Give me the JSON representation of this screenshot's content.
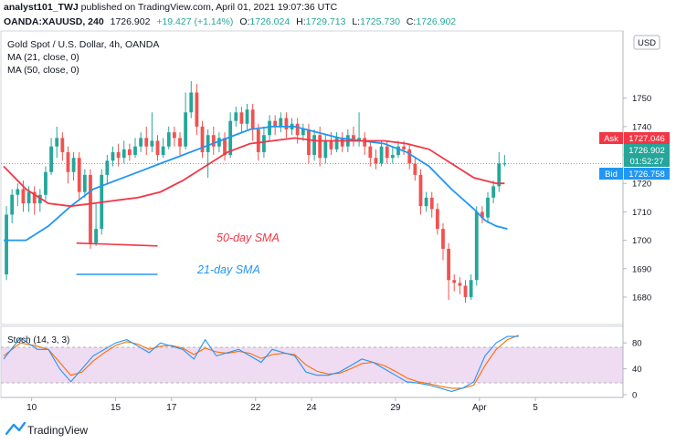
{
  "header": {
    "author": "analyst101_TWJ",
    "published": " published on TradingView.com, April 01, 2021 19:07:36 UTC",
    "symbol": "OANDA:XAUUSD, 240",
    "price": "1726.902",
    "change": "+19.427 (+1.14%)",
    "o_label": "O:",
    "o": "1726.024",
    "h_label": "H:",
    "h": "1729.713",
    "l_label": "L:",
    "l": "1725.730",
    "c_label": "C:",
    "c": "1726.902"
  },
  "legend": {
    "title": "Gold Spot / U.S. Dollar, 4h, OANDA",
    "ma21": "MA (21, close, 0)",
    "ma50": "MA (50, close, 0)"
  },
  "annotations": {
    "sma50": "50-day SMA",
    "sma21": "21-day SMA"
  },
  "price_tags": {
    "currency": "USD",
    "ask_label": "Ask",
    "ask": "1727.046",
    "last": "1726.902",
    "countdown": "01:52:27",
    "bid_label": "Bid",
    "bid": "1726.758"
  },
  "stoch_label": "Stoch (14, 3, 3)",
  "brand": "TradingView",
  "colors": {
    "bull": "#26a69a",
    "bear": "#ef5350",
    "ma21": "#2196f3",
    "ma50": "#f23645",
    "stoch_k": "#2196f3",
    "stoch_d": "#ff6d00",
    "stoch_band": "#e1bee7"
  },
  "chart_data": [
    {
      "type": "candlestick",
      "title": "Gold Spot / U.S. Dollar, 4h, OANDA",
      "x_ticks": [
        "10",
        "15",
        "17",
        "22",
        "24",
        "29",
        "Apr",
        "5"
      ],
      "y_ticks": [
        1680,
        1690,
        1700,
        1710,
        1720,
        1730,
        1740,
        1750
      ],
      "ylim": [
        1671,
        1773
      ],
      "x_range": [
        0,
        110
      ],
      "tick_positions": [
        5,
        20,
        30,
        45,
        55,
        70,
        85,
        95
      ],
      "candles": [
        [
          1688,
          1709,
          1686,
          1712
        ],
        [
          1709,
          1716,
          1706,
          1718
        ],
        [
          1716,
          1718,
          1712,
          1720
        ],
        [
          1718,
          1713,
          1710,
          1721
        ],
        [
          1713,
          1717,
          1710,
          1719
        ],
        [
          1717,
          1713,
          1709,
          1719
        ],
        [
          1713,
          1716,
          1710,
          1718
        ],
        [
          1716,
          1724,
          1714,
          1726
        ],
        [
          1724,
          1733,
          1723,
          1736
        ],
        [
          1733,
          1736,
          1729,
          1740
        ],
        [
          1736,
          1731,
          1728,
          1738
        ],
        [
          1731,
          1724,
          1720,
          1733
        ],
        [
          1724,
          1729,
          1721,
          1731
        ],
        [
          1729,
          1717,
          1714,
          1731
        ],
        [
          1717,
          1723,
          1715,
          1725
        ],
        [
          1723,
          1699,
          1697,
          1725
        ],
        [
          1699,
          1704,
          1698,
          1713
        ],
        [
          1704,
          1723,
          1702,
          1725
        ],
        [
          1723,
          1728,
          1720,
          1730
        ],
        [
          1728,
          1731,
          1726,
          1733
        ],
        [
          1731,
          1729,
          1726,
          1734
        ],
        [
          1729,
          1732,
          1727,
          1735
        ],
        [
          1732,
          1730,
          1728,
          1734
        ],
        [
          1730,
          1733,
          1729,
          1736
        ],
        [
          1733,
          1736,
          1731,
          1738
        ],
        [
          1736,
          1733,
          1730,
          1740
        ],
        [
          1733,
          1735,
          1731,
          1745
        ],
        [
          1735,
          1730,
          1728,
          1737
        ],
        [
          1730,
          1733,
          1729,
          1736
        ],
        [
          1733,
          1738,
          1732,
          1740
        ],
        [
          1738,
          1736,
          1733,
          1740
        ],
        [
          1736,
          1733,
          1730,
          1738
        ],
        [
          1733,
          1745,
          1732,
          1752
        ],
        [
          1745,
          1752,
          1743,
          1756
        ],
        [
          1752,
          1740,
          1737,
          1755
        ],
        [
          1740,
          1731,
          1729,
          1742
        ],
        [
          1731,
          1737,
          1722,
          1739
        ],
        [
          1737,
          1733,
          1730,
          1740
        ],
        [
          1733,
          1736,
          1731,
          1738
        ],
        [
          1736,
          1730,
          1728,
          1738
        ],
        [
          1730,
          1742,
          1729,
          1745
        ],
        [
          1742,
          1745,
          1740,
          1747
        ],
        [
          1745,
          1741,
          1738,
          1747
        ],
        [
          1741,
          1746,
          1739,
          1748
        ],
        [
          1746,
          1739,
          1735,
          1748
        ],
        [
          1739,
          1731,
          1728,
          1741
        ],
        [
          1731,
          1737,
          1729,
          1740
        ],
        [
          1737,
          1742,
          1735,
          1744
        ],
        [
          1742,
          1740,
          1737,
          1744
        ],
        [
          1740,
          1743,
          1738,
          1745
        ],
        [
          1743,
          1739,
          1736,
          1745
        ],
        [
          1739,
          1741,
          1737,
          1743
        ],
        [
          1741,
          1737,
          1734,
          1743
        ],
        [
          1737,
          1739,
          1735,
          1741
        ],
        [
          1739,
          1730,
          1727,
          1741
        ],
        [
          1730,
          1737,
          1728,
          1739
        ],
        [
          1737,
          1729,
          1726,
          1740
        ],
        [
          1729,
          1735,
          1727,
          1737
        ],
        [
          1735,
          1732,
          1730,
          1738
        ],
        [
          1732,
          1736,
          1731,
          1738
        ],
        [
          1736,
          1733,
          1731,
          1738
        ],
        [
          1733,
          1737,
          1731,
          1739
        ],
        [
          1737,
          1735,
          1733,
          1740
        ],
        [
          1735,
          1736,
          1733,
          1745
        ],
        [
          1736,
          1733,
          1730,
          1738
        ],
        [
          1733,
          1729,
          1726,
          1735
        ],
        [
          1729,
          1727,
          1725,
          1732
        ],
        [
          1727,
          1733,
          1726,
          1735
        ],
        [
          1733,
          1729,
          1727,
          1735
        ],
        [
          1729,
          1730,
          1727,
          1733
        ],
        [
          1730,
          1733,
          1729,
          1735
        ],
        [
          1733,
          1732,
          1730,
          1735
        ],
        [
          1732,
          1727,
          1725,
          1734
        ],
        [
          1727,
          1723,
          1721,
          1729
        ],
        [
          1723,
          1712,
          1709,
          1725
        ],
        [
          1712,
          1715,
          1710,
          1717
        ],
        [
          1715,
          1711,
          1708,
          1717
        ],
        [
          1711,
          1704,
          1702,
          1713
        ],
        [
          1704,
          1697,
          1693,
          1706
        ],
        [
          1697,
          1686,
          1679,
          1699
        ],
        [
          1686,
          1685,
          1682,
          1688
        ],
        [
          1685,
          1684,
          1681,
          1687
        ],
        [
          1684,
          1680,
          1678,
          1686
        ],
        [
          1680,
          1686,
          1679,
          1688
        ],
        [
          1686,
          1710,
          1684,
          1712
        ],
        [
          1710,
          1708,
          1706,
          1712
        ],
        [
          1708,
          1715,
          1706,
          1717
        ],
        [
          1715,
          1719,
          1713,
          1721
        ],
        [
          1719,
          1727,
          1717,
          1731
        ],
        [
          1727,
          1727,
          1726,
          1730
        ]
      ],
      "ma21": [
        [
          0,
          1700
        ],
        [
          4,
          1700
        ],
        [
          8,
          1705
        ],
        [
          12,
          1712
        ],
        [
          16,
          1718
        ],
        [
          20,
          1721
        ],
        [
          24,
          1724
        ],
        [
          28,
          1727
        ],
        [
          32,
          1730
        ],
        [
          36,
          1733
        ],
        [
          40,
          1736
        ],
        [
          44,
          1739
        ],
        [
          48,
          1740
        ],
        [
          52,
          1740
        ],
        [
          56,
          1738
        ],
        [
          60,
          1736
        ],
        [
          64,
          1735
        ],
        [
          68,
          1734
        ],
        [
          72,
          1731
        ],
        [
          76,
          1726
        ],
        [
          80,
          1718
        ],
        [
          84,
          1711
        ],
        [
          86,
          1707
        ],
        [
          88,
          1705
        ],
        [
          90,
          1704
        ]
      ],
      "ma50": [
        [
          0,
          1726
        ],
        [
          4,
          1718
        ],
        [
          8,
          1713
        ],
        [
          12,
          1712
        ],
        [
          16,
          1713
        ],
        [
          20,
          1714
        ],
        [
          24,
          1715
        ],
        [
          28,
          1717
        ],
        [
          32,
          1721
        ],
        [
          36,
          1726
        ],
        [
          40,
          1731
        ],
        [
          44,
          1734
        ],
        [
          48,
          1735
        ],
        [
          52,
          1736
        ],
        [
          56,
          1735
        ],
        [
          60,
          1735
        ],
        [
          64,
          1735
        ],
        [
          68,
          1735
        ],
        [
          72,
          1734
        ],
        [
          76,
          1732
        ],
        [
          80,
          1727
        ],
        [
          84,
          1722
        ],
        [
          88,
          1720
        ],
        [
          89.5,
          1720
        ]
      ],
      "annotation_lines": [
        {
          "name": "sma50-marker",
          "color": "#f23645",
          "y1": 1699,
          "y2": 1698,
          "x1": 13,
          "x2": 27.5
        },
        {
          "name": "sma21-marker",
          "color": "#2196f3",
          "y1": 1688,
          "y2": 1688,
          "x1": 13,
          "x2": 27.5
        }
      ]
    },
    {
      "type": "line",
      "title": "Stoch (14, 3, 3)",
      "ylim": [
        0,
        100
      ],
      "y_ticks": [
        0,
        40,
        80
      ],
      "bands": [
        20,
        80
      ],
      "series": [
        {
          "name": "%K",
          "values": [
            [
              0,
              55
            ],
            [
              3,
              88
            ],
            [
              6,
              70
            ],
            [
              8,
              70
            ],
            [
              10,
              40
            ],
            [
              12,
              20
            ],
            [
              14,
              40
            ],
            [
              16,
              60
            ],
            [
              18,
              70
            ],
            [
              20,
              80
            ],
            [
              22,
              85
            ],
            [
              24,
              75
            ],
            [
              26,
              65
            ],
            [
              28,
              80
            ],
            [
              30,
              75
            ],
            [
              32,
              70
            ],
            [
              34,
              55
            ],
            [
              36,
              85
            ],
            [
              38,
              60
            ],
            [
              40,
              65
            ],
            [
              42,
              70
            ],
            [
              44,
              60
            ],
            [
              46,
              50
            ],
            [
              48,
              70
            ],
            [
              50,
              65
            ],
            [
              52,
              60
            ],
            [
              54,
              35
            ],
            [
              56,
              30
            ],
            [
              58,
              30
            ],
            [
              60,
              35
            ],
            [
              62,
              45
            ],
            [
              64,
              55
            ],
            [
              66,
              50
            ],
            [
              68,
              40
            ],
            [
              70,
              30
            ],
            [
              72,
              20
            ],
            [
              74,
              18
            ],
            [
              76,
              15
            ],
            [
              78,
              10
            ],
            [
              80,
              5
            ],
            [
              82,
              10
            ],
            [
              84,
              20
            ],
            [
              86,
              60
            ],
            [
              88,
              80
            ],
            [
              90,
              90
            ],
            [
              92,
              90
            ]
          ]
        },
        {
          "name": "%D",
          "values": [
            [
              0,
              60
            ],
            [
              3,
              80
            ],
            [
              6,
              75
            ],
            [
              8,
              70
            ],
            [
              10,
              50
            ],
            [
              12,
              30
            ],
            [
              14,
              35
            ],
            [
              16,
              52
            ],
            [
              18,
              65
            ],
            [
              20,
              76
            ],
            [
              22,
              82
            ],
            [
              24,
              78
            ],
            [
              26,
              70
            ],
            [
              28,
              75
            ],
            [
              30,
              76
            ],
            [
              32,
              72
            ],
            [
              34,
              62
            ],
            [
              36,
              72
            ],
            [
              38,
              66
            ],
            [
              40,
              64
            ],
            [
              42,
              67
            ],
            [
              44,
              64
            ],
            [
              46,
              56
            ],
            [
              48,
              62
            ],
            [
              50,
              64
            ],
            [
              52,
              62
            ],
            [
              54,
              46
            ],
            [
              56,
              36
            ],
            [
              58,
              32
            ],
            [
              60,
              33
            ],
            [
              62,
              40
            ],
            [
              64,
              48
            ],
            [
              66,
              50
            ],
            [
              68,
              45
            ],
            [
              70,
              36
            ],
            [
              72,
              26
            ],
            [
              74,
              20
            ],
            [
              76,
              17
            ],
            [
              78,
              13
            ],
            [
              80,
              10
            ],
            [
              82,
              10
            ],
            [
              84,
              15
            ],
            [
              86,
              45
            ],
            [
              88,
              70
            ],
            [
              90,
              85
            ],
            [
              92,
              92
            ]
          ]
        }
      ]
    }
  ]
}
